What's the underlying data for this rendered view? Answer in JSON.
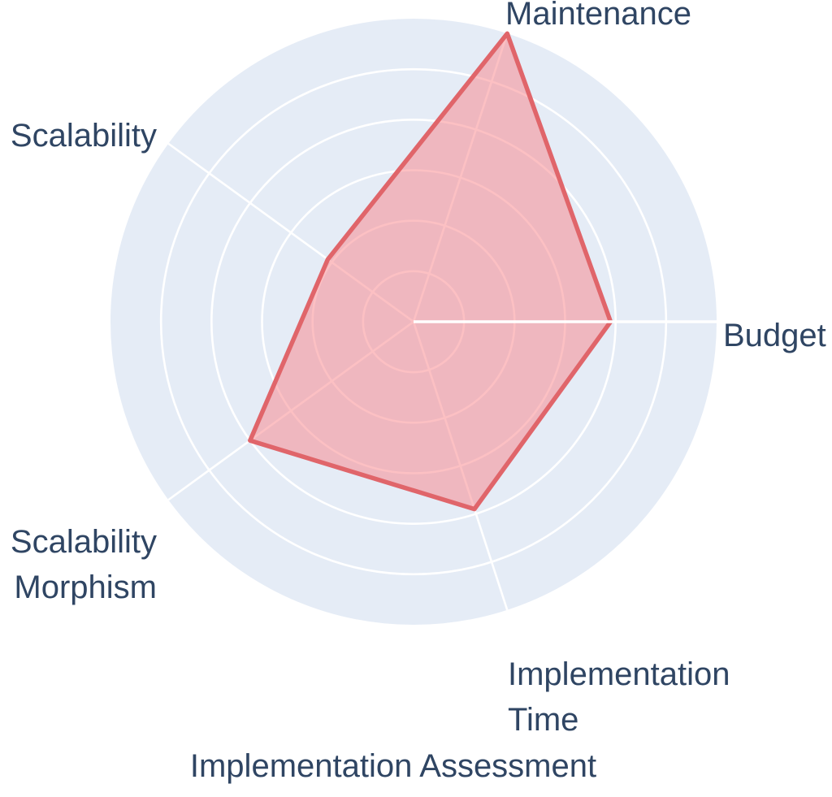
{
  "chart_data": {
    "type": "radar",
    "title": "Implementation Assessment",
    "categories": [
      "Budget",
      "Maintenance",
      "Scalability",
      "Scalability Morphism",
      "Implementation Time"
    ],
    "values": [
      3.9,
      6.0,
      2.1,
      4.0,
      3.9
    ],
    "angles_deg": [
      0,
      72,
      144,
      216,
      288
    ],
    "radial_range": [
      0,
      6
    ],
    "grid_ticks": [
      1,
      2,
      3,
      4,
      5
    ],
    "grid_on": true,
    "legend": "none",
    "axis_labels": {
      "maintenance": {
        "lines": [
          "Maintenance"
        ]
      },
      "budget": {
        "lines": [
          "Budget"
        ]
      },
      "scalability": {
        "lines": [
          "Scalability"
        ]
      },
      "scalability_morphism": {
        "lines": [
          "Scalability",
          "Morphism"
        ]
      },
      "implementation_time": {
        "lines": [
          "Implementation",
          "Time"
        ]
      }
    },
    "colors": {
      "polar_background": "#e5ecf6",
      "grid": "#ffffff",
      "series_fill_rgba": "rgba(250,130,135,0.5)",
      "series_stroke": "#e0656a",
      "text": "#2f4563"
    }
  }
}
